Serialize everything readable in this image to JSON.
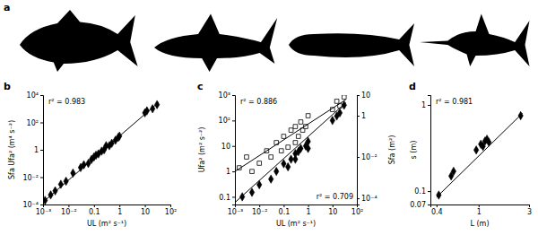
{
  "panel_a": {
    "label": "a"
  },
  "chart_data": [
    {
      "type": "scatter",
      "title": "b",
      "annotations": [
        "r² = 0.983"
      ],
      "x_label": "UL (m² s⁻¹)",
      "y_label": "Sfa Ufa² (m⁴ s⁻²)",
      "log": true,
      "xlim": [
        0.001,
        100
      ],
      "xticks": [
        {
          "value": 0.001,
          "label": "10⁻³"
        },
        {
          "value": 0.01,
          "label": "10⁻²"
        },
        0.1,
        1,
        10,
        {
          "value": 100,
          "label": "10²"
        }
      ],
      "ylim": [
        0.0001,
        10000
      ],
      "yticks": [
        {
          "value": 0.0001,
          "label": "10⁻⁴"
        },
        {
          "value": 0.01,
          "label": "10⁻²"
        },
        1,
        {
          "value": 100,
          "label": "10²"
        },
        {
          "value": 10000,
          "label": "10⁴"
        }
      ],
      "series": [
        {
          "type": "scatter",
          "marker": "diamond",
          "color": "#000000",
          "x": [
            0.0012,
            0.002,
            0.003,
            0.005,
            0.008,
            0.015,
            0.03,
            0.04,
            0.06,
            0.08,
            0.1,
            0.12,
            0.15,
            0.2,
            0.25,
            0.3,
            0.4,
            0.5,
            0.7,
            0.9,
            1,
            10,
            12,
            20,
            30
          ],
          "values": [
            0.0002,
            0.0005,
            0.001,
            0.003,
            0.005,
            0.02,
            0.05,
            0.08,
            0.1,
            0.2,
            0.3,
            0.4,
            0.5,
            0.8,
            1,
            2,
            2,
            3,
            5,
            8,
            10,
            500,
            700,
            1000,
            2000
          ]
        },
        {
          "type": "line",
          "line_style": "solid",
          "color": "#000000",
          "x": [
            0.001,
            35
          ],
          "values": [
            0.00015,
            3000
          ]
        }
      ]
    },
    {
      "type": "scatter",
      "title": "c",
      "annotations": [
        "r² = 0.886",
        "r² = 0.709"
      ],
      "x_label": "UL (m² s⁻¹)",
      "y_label": "Ufa² (m² s⁻²)",
      "y2_label": "Sfa (m²)",
      "log": true,
      "xlim": [
        0.001,
        100
      ],
      "xticks": [
        {
          "value": 0.001,
          "label": "10⁻³"
        },
        {
          "value": 0.01,
          "label": "10⁻²"
        },
        0.1,
        1,
        10,
        {
          "value": 100,
          "label": "10²"
        }
      ],
      "ylim": [
        0.05,
        1000
      ],
      "yticks": [
        0.1,
        1,
        10,
        {
          "value": 100,
          "label": "10²"
        },
        {
          "value": 1000,
          "label": "10³"
        }
      ],
      "y2lim": [
        5e-05,
        10
      ],
      "y2ticks": [
        {
          "value": 0.0001,
          "label": "10⁻⁴"
        },
        {
          "value": 0.01,
          "label": "10⁻²"
        },
        1,
        10
      ],
      "series": [
        {
          "type": "scatter",
          "marker": "diamond",
          "color": "#000000",
          "x": [
            0.002,
            0.005,
            0.01,
            0.03,
            0.05,
            0.1,
            0.15,
            0.2,
            0.3,
            0.3,
            0.4,
            0.5,
            0.8,
            1,
            1,
            10,
            15,
            20,
            30
          ],
          "values": [
            0.1,
            0.15,
            0.3,
            0.5,
            1,
            2,
            1.5,
            3,
            5,
            3,
            6,
            8,
            10,
            15,
            8,
            100,
            150,
            200,
            400
          ]
        },
        {
          "type": "scatter",
          "marker": "open-square",
          "color": "#000000",
          "axis": "y2",
          "x": [
            0.0015,
            0.003,
            0.005,
            0.01,
            0.02,
            0.03,
            0.05,
            0.08,
            0.1,
            0.15,
            0.2,
            0.3,
            0.3,
            0.4,
            0.5,
            0.6,
            0.8,
            1,
            10,
            15,
            20,
            30
          ],
          "values": [
            0.003,
            0.01,
            0.002,
            0.005,
            0.02,
            0.01,
            0.05,
            0.02,
            0.1,
            0.03,
            0.2,
            0.05,
            0.3,
            0.1,
            0.5,
            0.2,
            0.3,
            1,
            2,
            5,
            3,
            8
          ]
        },
        {
          "type": "line",
          "line_style": "solid",
          "color": "#000000",
          "x": [
            0.001,
            35
          ],
          "values": [
            0.06,
            500
          ]
        },
        {
          "type": "line",
          "line_style": "solid",
          "color": "#000000",
          "axis": "y2",
          "x": [
            0.001,
            35
          ],
          "values": [
            0.002,
            6
          ]
        }
      ]
    },
    {
      "type": "scatter",
      "title": "d",
      "annotations": [
        "r² = 0.981"
      ],
      "x_label": "L (m)",
      "y_label": "s (m)",
      "log": true,
      "xlim": [
        0.35,
        3
      ],
      "xticks": [
        0.4,
        1,
        3
      ],
      "ylim": [
        0.07,
        1.3
      ],
      "yticks": [
        0.07,
        0.1,
        1
      ],
      "series": [
        {
          "type": "scatter",
          "marker": "diamond",
          "color": "#000000",
          "x": [
            0.42,
            0.55,
            0.58,
            0.95,
            1.05,
            1.1,
            1.15,
            1.2,
            1.25,
            2.5
          ],
          "values": [
            0.09,
            0.15,
            0.17,
            0.3,
            0.35,
            0.33,
            0.38,
            0.4,
            0.37,
            0.75
          ]
        },
        {
          "type": "line",
          "line_style": "solid",
          "color": "#000000",
          "x": [
            0.4,
            2.6
          ],
          "values": [
            0.085,
            0.8
          ]
        }
      ]
    }
  ]
}
